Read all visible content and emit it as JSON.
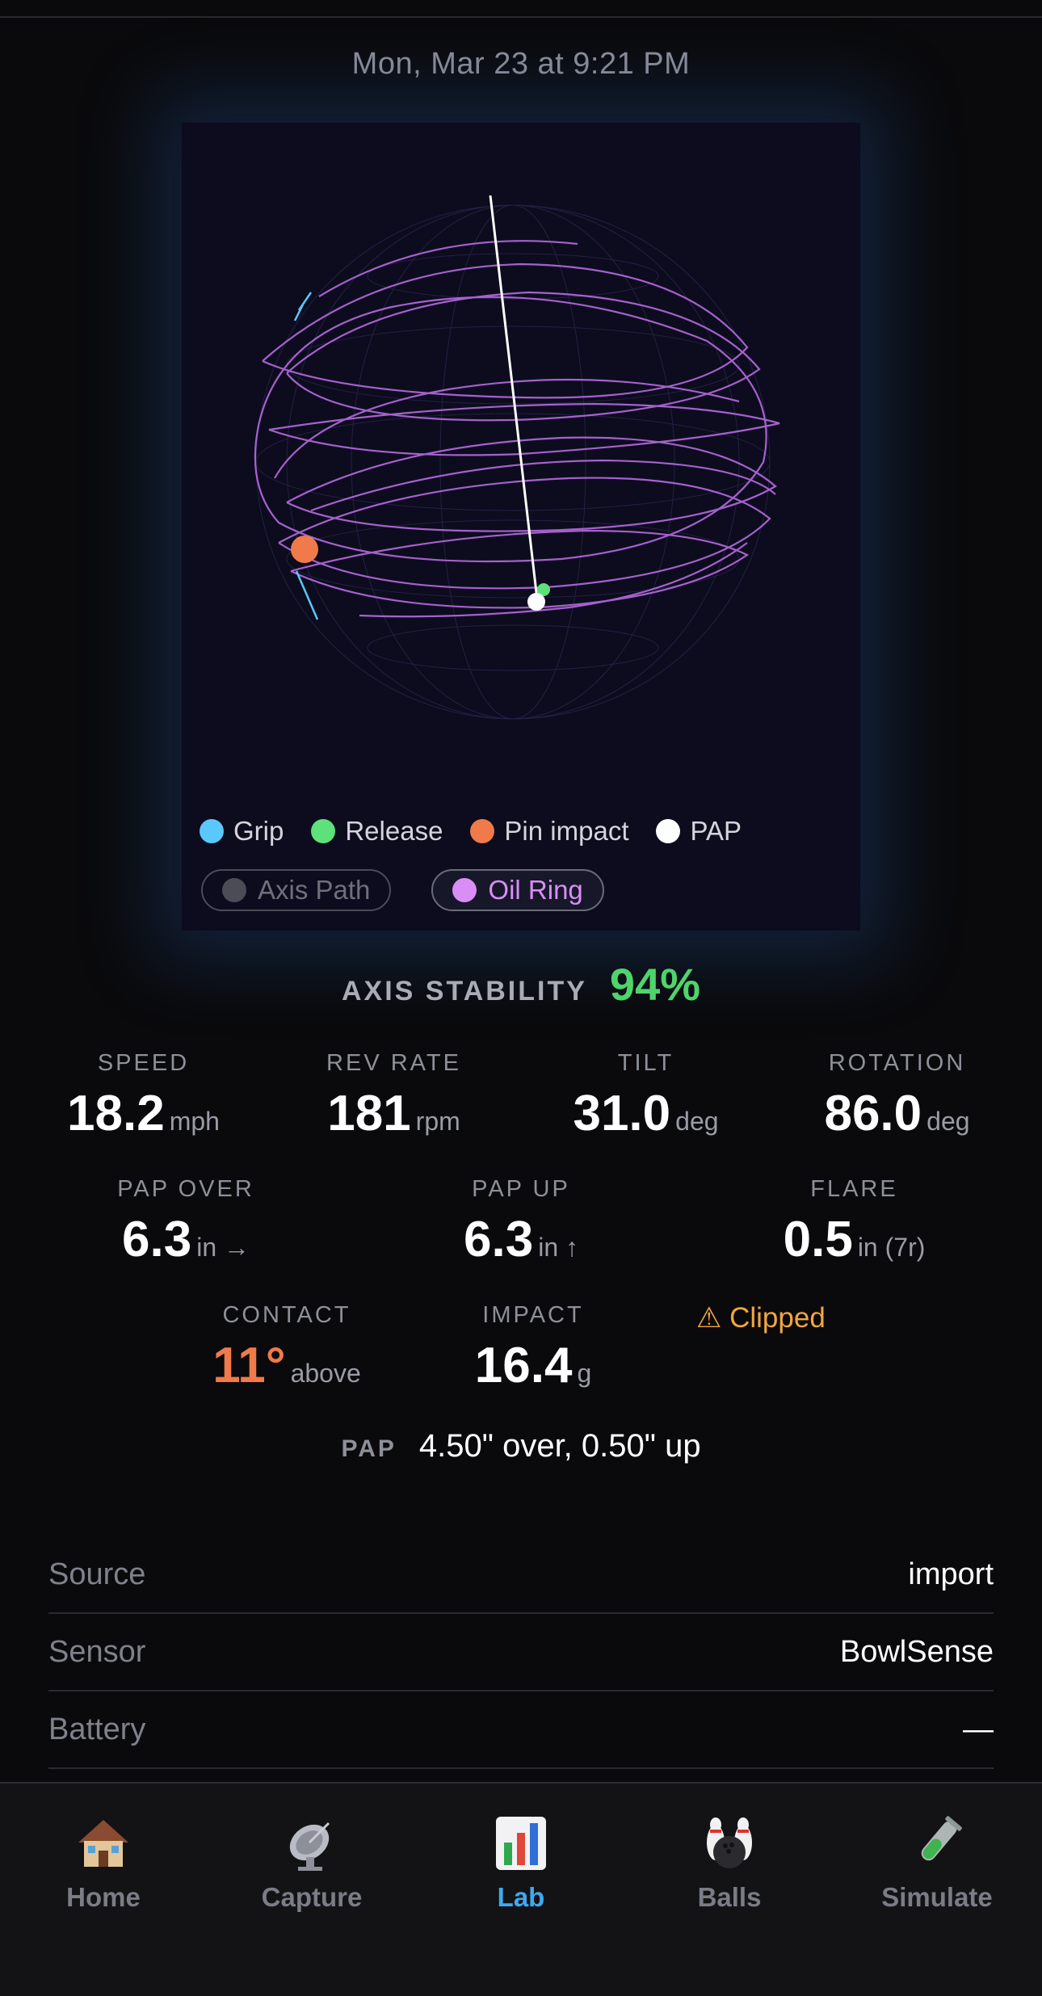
{
  "timestamp": "Mon, Mar 23 at 9:21 PM",
  "legend": [
    {
      "label": "Grip",
      "color": "#5ac8fa"
    },
    {
      "label": "Release",
      "color": "#5ee07a"
    },
    {
      "label": "Pin impact",
      "color": "#f07a4a"
    },
    {
      "label": "PAP",
      "color": "#ffffff"
    }
  ],
  "toggles": [
    {
      "label": "Axis Path",
      "state": "off"
    },
    {
      "label": "Oil Ring",
      "state": "on",
      "color": "#d98ef5"
    }
  ],
  "axis_stability": {
    "label": "AXIS STABILITY",
    "value": "94%",
    "color": "#4fd46b"
  },
  "metrics_row1": [
    {
      "label": "SPEED",
      "value": "18.2",
      "unit": "mph"
    },
    {
      "label": "REV RATE",
      "value": "181",
      "unit": "rpm"
    },
    {
      "label": "TILT",
      "value": "31.0",
      "unit": "deg"
    },
    {
      "label": "ROTATION",
      "value": "86.0",
      "unit": "deg"
    }
  ],
  "metrics_row2": [
    {
      "label": "PAP OVER",
      "value": "6.3",
      "unit": "in →"
    },
    {
      "label": "PAP UP",
      "value": "6.3",
      "unit": "in ↑"
    },
    {
      "label": "FLARE",
      "value": "0.5",
      "unit": "in (7r)"
    }
  ],
  "metrics_row3": [
    {
      "label": "CONTACT",
      "value": "11°",
      "unit": "above",
      "color": "#f07a4a"
    },
    {
      "label": "IMPACT",
      "value": "16.4",
      "unit": "g"
    }
  ],
  "warning": "⚠ Clipped",
  "pap": {
    "label": "PAP",
    "value": "4.50\" over, 0.50\" up"
  },
  "info": [
    {
      "label": "Source",
      "value": "import"
    },
    {
      "label": "Sensor",
      "value": "BowlSense"
    },
    {
      "label": "Battery",
      "value": "—"
    }
  ],
  "tabs": [
    {
      "label": "Home",
      "icon": "house-icon",
      "active": false
    },
    {
      "label": "Capture",
      "icon": "satellite-dish-icon",
      "active": false
    },
    {
      "label": "Lab",
      "icon": "bar-chart-icon",
      "active": true
    },
    {
      "label": "Balls",
      "icon": "bowling-icon",
      "active": false
    },
    {
      "label": "Simulate",
      "icon": "test-tube-icon",
      "active": false
    }
  ]
}
